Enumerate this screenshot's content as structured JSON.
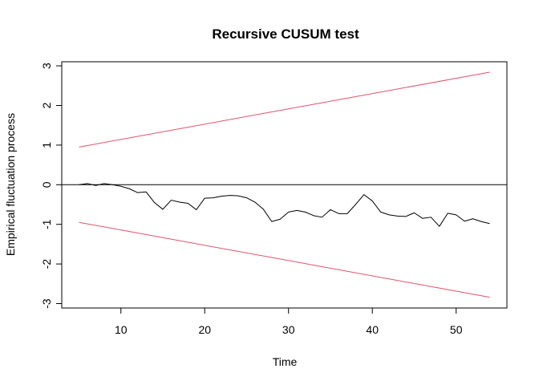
{
  "chart_data": {
    "type": "line",
    "title": "Recursive CUSUM test",
    "xlabel": "Time",
    "ylabel": "Empirical fluctuation process",
    "xlim": [
      5,
      54
    ],
    "ylim": [
      -3,
      3
    ],
    "xticks": [
      10,
      20,
      30,
      40,
      50
    ],
    "yticks": [
      -3,
      -2,
      -1,
      0,
      1,
      2,
      3
    ],
    "grid": false,
    "reference_line": {
      "y": 0,
      "color": "#000000"
    },
    "boundaries": {
      "color": "#DF536B",
      "upper": [
        [
          5,
          0.95
        ],
        [
          54,
          2.84
        ]
      ],
      "lower": [
        [
          5,
          -0.95
        ],
        [
          54,
          -2.84
        ]
      ]
    },
    "series": [
      {
        "color": "#000000",
        "x": [
          5,
          6,
          7,
          8,
          9,
          10,
          11,
          12,
          13,
          14,
          15,
          16,
          17,
          18,
          19,
          20,
          21,
          22,
          23,
          24,
          25,
          26,
          27,
          28,
          29,
          30,
          31,
          32,
          33,
          34,
          35,
          36,
          37,
          38,
          39,
          40,
          41,
          42,
          43,
          44,
          45,
          46,
          47,
          48,
          49,
          50,
          51,
          52,
          53,
          54
        ],
        "values": [
          0.0,
          0.03,
          -0.02,
          0.03,
          0.0,
          -0.04,
          -0.1,
          -0.2,
          -0.18,
          -0.45,
          -0.62,
          -0.39,
          -0.44,
          -0.47,
          -0.63,
          -0.34,
          -0.33,
          -0.29,
          -0.27,
          -0.28,
          -0.33,
          -0.44,
          -0.62,
          -0.93,
          -0.87,
          -0.69,
          -0.65,
          -0.69,
          -0.78,
          -0.82,
          -0.63,
          -0.73,
          -0.73,
          -0.5,
          -0.25,
          -0.41,
          -0.69,
          -0.76,
          -0.79,
          -0.8,
          -0.71,
          -0.85,
          -0.82,
          -1.05,
          -0.72,
          -0.76,
          -0.92,
          -0.86,
          -0.93,
          -0.98
        ]
      }
    ]
  }
}
